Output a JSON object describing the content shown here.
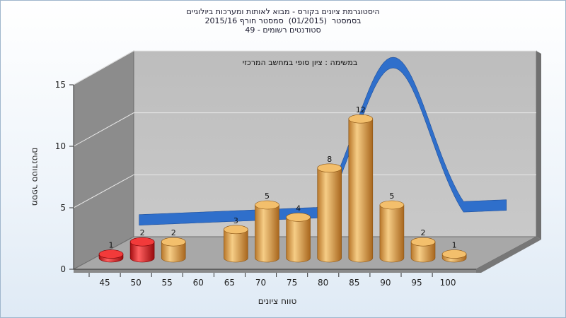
{
  "chart_data": {
    "type": "bar",
    "title": [
      "היסטוגרמת ציונים בקורס - מבוא לאותות ומערכות ביולוגיים",
      "בסמסטר  (01/2015)  סמסטר חורף 2015/16",
      "סטודנטים רשומים - 49"
    ],
    "subtitle": "במשימה : ציון סופי במחשב המרכזי",
    "xlabel": "טווח ציונים",
    "ylabel": "מספר סטודנטים",
    "ylim": [
      0,
      15
    ],
    "yticks": [
      "0",
      "5",
      "10",
      "15"
    ],
    "categories": [
      "45",
      "50",
      "55",
      "60",
      "65",
      "70",
      "75",
      "80",
      "85",
      "90",
      "95",
      "100"
    ],
    "values": [
      1,
      2,
      2,
      0,
      3,
      5,
      4,
      8,
      12,
      5,
      2,
      1
    ],
    "bar_colors": [
      "#e8141b",
      "#e8141b",
      "#e2a24e",
      "#e2a24e",
      "#e2a24e",
      "#e2a24e",
      "#e2a24e",
      "#e2a24e",
      "#e2a24e",
      "#e2a24e",
      "#e2a24e",
      "#e2a24e"
    ],
    "curve_color": "#2f6fcb",
    "grid": true
  }
}
